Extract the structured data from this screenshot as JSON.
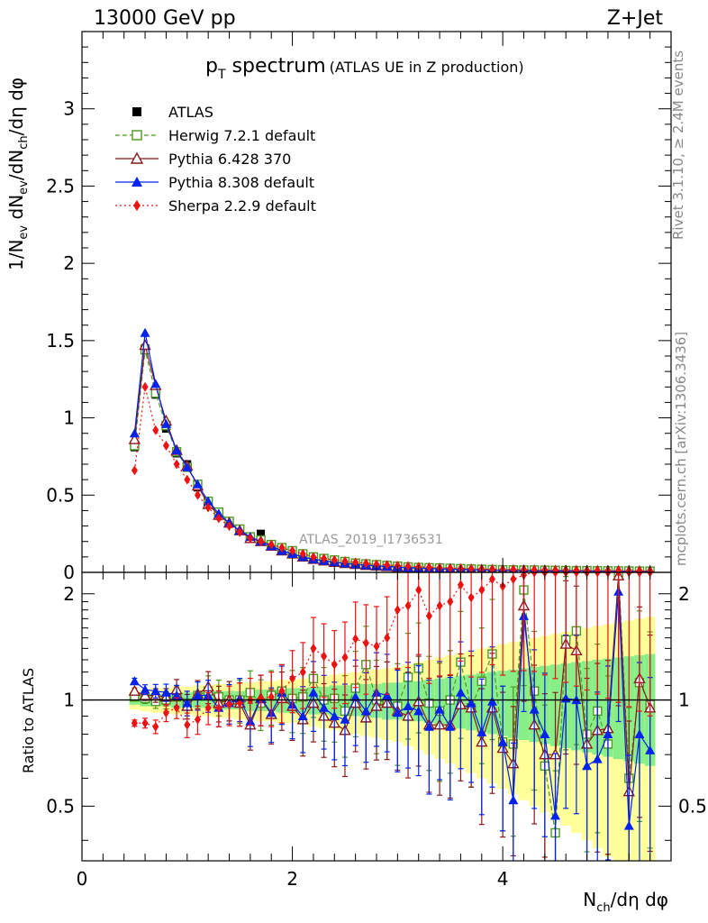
{
  "header": {
    "energy": "13000 GeV pp",
    "process": "Z+Jet"
  },
  "side_labels": {
    "rivet": "Rivet 3.1.10, ≥ 2.4M events",
    "mcplots": "mcplots.cern.ch [arXiv:1306.3436]"
  },
  "colors": {
    "atlas": "#000000",
    "herwig": "#4a9a1f",
    "pythia6": "#8b1a1a",
    "pythia8": "#0022ee",
    "sherpa": "#ee1111",
    "band_stat": "#88ee88",
    "band_total": "#ffff99"
  },
  "chart_data": [
    {
      "type": "scatter",
      "panel": "main",
      "title": "p_T spectrum (ATLAS UE in Z production)",
      "title_main": "p",
      "title_sub": "T",
      "title_word": " spectrum",
      "title_paren": "(ATLAS UE in Z production)",
      "ylabel": "1/N_ev dN_ev/dN_ch/dη dφ",
      "analysis_label": "ATLAS_2019_I1736531",
      "xlim": [
        0,
        5.6
      ],
      "ylim": [
        0,
        3.5
      ],
      "yticks": [
        0,
        0.5,
        1,
        1.5,
        2,
        2.5,
        3
      ],
      "ytick_labels": [
        "0",
        "0.5",
        "1",
        "1.5",
        "2",
        "2.5",
        "3"
      ],
      "x": [
        0.5,
        0.6,
        0.7,
        0.8,
        0.9,
        1.0,
        1.1,
        1.2,
        1.3,
        1.4,
        1.5,
        1.6,
        1.7,
        1.8,
        1.9,
        2.0,
        2.1,
        2.2,
        2.3,
        2.4,
        2.5,
        2.6,
        2.7,
        2.8,
        2.9,
        3.0,
        3.1,
        3.2,
        3.3,
        3.4,
        3.5,
        3.6,
        3.7,
        3.8,
        3.9,
        4.0,
        4.1,
        4.2,
        4.3,
        4.4,
        4.5,
        4.6,
        4.7,
        4.8,
        4.9,
        5.0,
        5.1,
        5.2,
        5.3,
        5.4
      ],
      "series": [
        {
          "name": "ATLAS",
          "marker": "square-filled",
          "line": "none",
          "values": [
            0.81,
            1.45,
            1.15,
            0.93,
            0.77,
            0.7,
            0.55,
            0.44,
            0.38,
            0.33,
            0.27,
            0.23,
            0.25,
            0.18,
            0.15,
            0.13,
            0.11,
            0.09,
            0.08,
            0.075,
            0.065,
            0.055,
            0.048,
            0.045,
            0.042,
            0.04,
            0.035,
            0.032,
            0.03,
            0.028,
            0.026,
            0.024,
            0.022,
            0.02,
            0.018,
            0.017,
            0.016,
            0.015,
            0.015,
            0.014,
            0.013,
            0.012,
            0.011,
            0.011,
            0.01,
            0.01,
            0.009,
            0.009,
            0.008,
            0.008
          ]
        },
        {
          "name": "Herwig 7.2.1 default",
          "marker": "square-open",
          "line": "dashed",
          "values": [
            0.82,
            1.44,
            1.16,
            0.95,
            0.78,
            0.68,
            0.57,
            0.46,
            0.39,
            0.33,
            0.28,
            0.23,
            0.21,
            0.18,
            0.16,
            0.14,
            0.12,
            0.1,
            0.09,
            0.08,
            0.07,
            0.06,
            0.055,
            0.05,
            0.045,
            0.04,
            0.035,
            0.032,
            0.03,
            0.028,
            0.026,
            0.024,
            0.022,
            0.02,
            0.018,
            0.017,
            0.016,
            0.015,
            0.015,
            0.014,
            0.013,
            0.012,
            0.011,
            0.011,
            0.01,
            0.01,
            0.009,
            0.009,
            0.008,
            0.008
          ]
        },
        {
          "name": "Pythia 6.428 370",
          "marker": "triangle-open",
          "line": "solid",
          "values": [
            0.86,
            1.47,
            1.21,
            0.98,
            0.79,
            0.69,
            0.56,
            0.44,
            0.37,
            0.32,
            0.27,
            0.22,
            0.2,
            0.17,
            0.14,
            0.12,
            0.1,
            0.085,
            0.075,
            0.065,
            0.058,
            0.052,
            0.046,
            0.042,
            0.038,
            0.034,
            0.03,
            0.028,
            0.025,
            0.023,
            0.021,
            0.019,
            0.018,
            0.016,
            0.015,
            0.014,
            0.013,
            0.012,
            0.011,
            0.011,
            0.01,
            0.01,
            0.009,
            0.009,
            0.008,
            0.008,
            0.008,
            0.007,
            0.007,
            0.007
          ]
        },
        {
          "name": "Pythia 8.308 default",
          "marker": "triangle-filled",
          "line": "solid",
          "values": [
            0.9,
            1.55,
            1.22,
            0.96,
            0.79,
            0.68,
            0.57,
            0.46,
            0.38,
            0.32,
            0.27,
            0.23,
            0.2,
            0.17,
            0.14,
            0.12,
            0.1,
            0.085,
            0.075,
            0.066,
            0.058,
            0.052,
            0.046,
            0.042,
            0.038,
            0.034,
            0.03,
            0.028,
            0.025,
            0.023,
            0.021,
            0.019,
            0.018,
            0.016,
            0.015,
            0.014,
            0.013,
            0.012,
            0.011,
            0.011,
            0.01,
            0.01,
            0.009,
            0.009,
            0.008,
            0.008,
            0.008,
            0.007,
            0.007,
            0.007
          ]
        },
        {
          "name": "Sherpa 2.2.9 default",
          "marker": "diamond-filled",
          "line": "dotted",
          "values": [
            0.66,
            1.2,
            0.92,
            0.82,
            0.7,
            0.6,
            0.5,
            0.42,
            0.35,
            0.3,
            0.26,
            0.22,
            0.2,
            0.18,
            0.16,
            0.14,
            0.12,
            0.1,
            0.09,
            0.08,
            0.072,
            0.065,
            0.058,
            0.052,
            0.048,
            0.044,
            0.04,
            0.036,
            0.033,
            0.03,
            0.028,
            0.026,
            0.024,
            0.022,
            0.02,
            0.019,
            0.018,
            0.017,
            0.016,
            0.015,
            0.014,
            0.013,
            0.012,
            0.012,
            0.011,
            0.011,
            0.01,
            0.01,
            0.009,
            0.009
          ]
        }
      ]
    },
    {
      "type": "scatter",
      "panel": "ratio",
      "ylabel": "Ratio to ATLAS",
      "xlabel": "N_ch/dη dφ",
      "xlabel_main": "N",
      "xlabel_sub": "ch",
      "xlabel_rest": "/dη dφ",
      "xlim": [
        0,
        5.6
      ],
      "ylim": [
        0.35,
        2.3
      ],
      "yscale": "log",
      "reference_line": 1,
      "xticks": [
        0,
        2,
        4
      ],
      "xtick_labels": [
        "0",
        "2",
        "4"
      ],
      "yticks": [
        0.5,
        1,
        2
      ],
      "ytick_labels": [
        "0.5",
        "1",
        "2"
      ],
      "x": [
        0.5,
        0.6,
        0.7,
        0.8,
        0.9,
        1.0,
        1.1,
        1.2,
        1.3,
        1.4,
        1.5,
        1.6,
        1.7,
        1.8,
        1.9,
        2.0,
        2.1,
        2.2,
        2.3,
        2.4,
        2.5,
        2.6,
        2.7,
        2.8,
        2.9,
        3.0,
        3.1,
        3.2,
        3.3,
        3.4,
        3.5,
        3.6,
        3.7,
        3.8,
        3.9,
        4.0,
        4.1,
        4.2,
        4.3,
        4.4,
        4.5,
        4.6,
        4.7,
        4.8,
        4.9,
        5.0,
        5.1,
        5.2,
        5.3,
        5.4
      ],
      "band_stat": [
        0.03,
        0.04,
        0.04,
        0.04,
        0.05,
        0.05,
        0.05,
        0.05,
        0.06,
        0.06,
        0.06,
        0.07,
        0.07,
        0.07,
        0.08,
        0.08,
        0.08,
        0.09,
        0.09,
        0.1,
        0.1,
        0.1,
        0.11,
        0.11,
        0.12,
        0.12,
        0.13,
        0.13,
        0.14,
        0.15,
        0.16,
        0.17,
        0.18,
        0.19,
        0.2,
        0.21,
        0.22,
        0.23,
        0.24,
        0.25,
        0.26,
        0.27,
        0.28,
        0.29,
        0.3,
        0.31,
        0.32,
        0.33,
        0.34,
        0.35
      ],
      "band_total": [
        0.06,
        0.07,
        0.08,
        0.08,
        0.09,
        0.09,
        0.1,
        0.1,
        0.11,
        0.11,
        0.12,
        0.12,
        0.13,
        0.13,
        0.14,
        0.14,
        0.15,
        0.16,
        0.17,
        0.18,
        0.19,
        0.2,
        0.21,
        0.22,
        0.23,
        0.24,
        0.26,
        0.28,
        0.3,
        0.32,
        0.34,
        0.36,
        0.38,
        0.4,
        0.42,
        0.44,
        0.46,
        0.48,
        0.5,
        0.52,
        0.54,
        0.56,
        0.58,
        0.6,
        0.62,
        0.64,
        0.66,
        0.68,
        0.7,
        0.72
      ],
      "series": [
        {
          "name": "Herwig 7.2.1 default",
          "marker": "square-open",
          "line": "dashed",
          "values": [
            1.02,
            1.01,
            0.99,
            1.0,
            1.02,
            0.98,
            1.03,
            1.06,
            1.02,
            1.0,
            1.0,
            1.05,
            0.98,
            1.03,
            1.06,
            1.01,
            1.02,
            1.15,
            1.0,
            1.01,
            0.93,
            1.08,
            1.26,
            1.0,
            0.98,
            0.96,
            1.16,
            1.23,
            0.98,
            0.93,
            1.0,
            1.28,
            0.95,
            1.13,
            1.35,
            0.76,
            0.75,
            2.05,
            1.06,
            0.65,
            0.42,
            1.48,
            1.57,
            0.8,
            0.93,
            0.75,
            2.3,
            0.6,
            1.12,
            0.97
          ]
        },
        {
          "name": "Pythia 6.428 370",
          "marker": "triangle-open",
          "line": "solid",
          "values": [
            1.06,
            1.03,
            1.03,
            1.02,
            1.07,
            0.96,
            1.04,
            1.09,
            0.98,
            1.0,
            0.98,
            0.85,
            1.01,
            0.91,
            1.01,
            0.96,
            0.88,
            0.98,
            0.9,
            0.86,
            0.82,
            0.98,
            0.89,
            0.96,
            0.98,
            0.93,
            0.9,
            0.99,
            0.85,
            0.85,
            0.85,
            0.97,
            0.95,
            0.76,
            0.95,
            0.73,
            0.66,
            1.85,
            0.85,
            0.7,
            0.7,
            1.44,
            1.38,
            0.75,
            0.82,
            0.83,
            2.25,
            0.55,
            1.15,
            0.95
          ]
        },
        {
          "name": "Pythia 8.308 default",
          "marker": "triangle-filled",
          "line": "solid",
          "values": [
            1.13,
            1.07,
            1.06,
            1.05,
            1.03,
            0.98,
            1.03,
            1.03,
            0.95,
            0.98,
            1.01,
            0.87,
            1.01,
            0.92,
            1.05,
            0.97,
            0.9,
            1.05,
            0.95,
            0.9,
            0.88,
            1.02,
            0.93,
            1.05,
            1.03,
            0.92,
            0.96,
            0.93,
            0.84,
            0.94,
            0.84,
            1.05,
            0.98,
            0.81,
            0.99,
            0.76,
            0.52,
            1.73,
            0.94,
            0.8,
            0.47,
            1.01,
            1.0,
            0.65,
            0.68,
            0.8,
            2.03,
            0.44,
            0.8,
            0.72
          ]
        },
        {
          "name": "Sherpa 2.2.9 default",
          "marker": "diamond-filled",
          "line": "dotted",
          "values": [
            0.86,
            0.86,
            0.84,
            0.92,
            0.95,
            0.85,
            0.88,
            0.95,
            0.95,
            0.97,
            0.98,
            1.0,
            1.01,
            1.02,
            1.06,
            1.15,
            1.2,
            1.4,
            1.33,
            1.26,
            1.32,
            1.49,
            1.45,
            1.42,
            1.5,
            1.8,
            1.85,
            2.05,
            1.73,
            1.85,
            1.9,
            2.12,
            1.95,
            2.05,
            2.2,
            2.1,
            2.2,
            2.26,
            2.3,
            2.3,
            2.3,
            2.3,
            2.3,
            2.3,
            2.3,
            2.3,
            2.3,
            2.3,
            2.3,
            2.3
          ]
        }
      ]
    }
  ]
}
